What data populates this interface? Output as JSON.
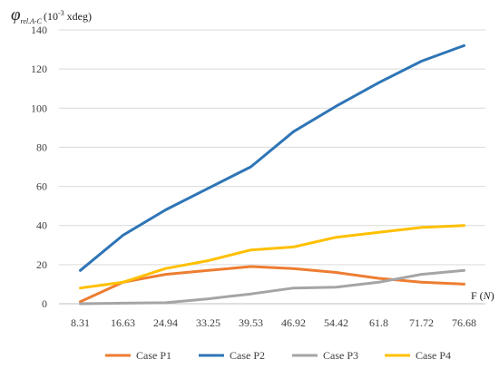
{
  "chart_data": {
    "type": "line",
    "ylabel": {
      "symbol": "φ",
      "subscript": "rel.A-C",
      "unit_prefix": "(10",
      "unit_exponent": "-3",
      "unit_suffix": " xdeg)"
    },
    "xlabel": {
      "text": "F (",
      "unit": "N",
      "close": ")"
    },
    "ylim": [
      0,
      140
    ],
    "yticks": [
      "0",
      "20",
      "40",
      "60",
      "80",
      "100",
      "120",
      "140"
    ],
    "categories": [
      "8.31",
      "16.63",
      "24.94",
      "33.25",
      "39.53",
      "46.92",
      "54.42",
      "61.8",
      "71.72",
      "76.68"
    ],
    "grid": true,
    "legend_position": "bottom",
    "series": [
      {
        "name": "Case P1",
        "color": "#ED7D31",
        "values": [
          1,
          11,
          15,
          17,
          19,
          18,
          16,
          13,
          11,
          10
        ]
      },
      {
        "name": "Case P2",
        "color": "#2E75B6",
        "values": [
          17,
          35,
          48,
          59,
          70,
          88,
          101,
          113,
          124,
          132
        ]
      },
      {
        "name": "Case P3",
        "color": "#A5A5A5",
        "values": [
          0,
          0.3,
          0.5,
          2.5,
          5,
          8,
          8.5,
          11,
          15,
          17
        ]
      },
      {
        "name": "Case P4",
        "color": "#FFC000",
        "values": [
          8,
          11,
          18,
          22,
          27.5,
          29,
          34,
          36.5,
          39,
          40
        ]
      }
    ]
  }
}
